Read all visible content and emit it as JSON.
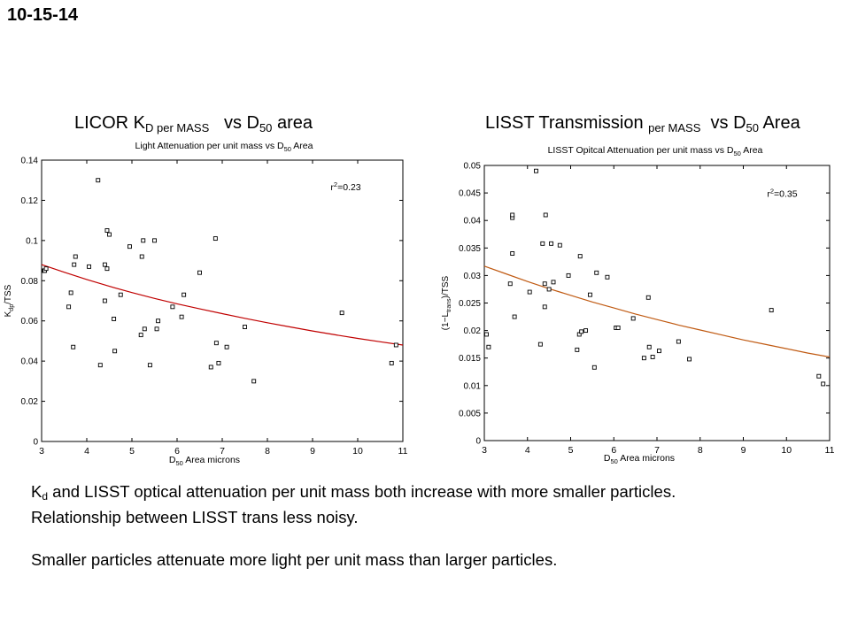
{
  "slide": {
    "date": "10-15-14",
    "left_header": {
      "main": "LICOR K",
      "sub": "D per MASS",
      "mid": "vs D",
      "sub2": "50",
      "end": " area"
    },
    "right_header": {
      "main": "LISST Transmission",
      "sub": "per MASS",
      "mid": "vs D",
      "sub2": "50",
      "end": " Area"
    },
    "notes": {
      "line1_k": "K",
      "line1_sub": "d",
      "line1_rest": " and LISST optical attenuation per unit mass both increase with more smaller particles.",
      "line2": "Relationship between LISST trans less noisy.",
      "line3": "Smaller particles attenuate more light per unit mass than larger particles."
    }
  },
  "chart_data": [
    {
      "type": "scatter",
      "title": "Light Attenuation per unit mass vs D50 Area",
      "title_parts": {
        "a": "Light Attenuation per unit mass vs D",
        "sub": "50",
        "b": " Area"
      },
      "xlabel": "D50 Area microns",
      "xlabel_parts": {
        "a": "D",
        "sub": "50",
        "b": " Area microns"
      },
      "ylabel": "Kdp/TSS",
      "ylabel_parts": {
        "a": "K",
        "sub": "dp",
        "b": "/TSS"
      },
      "annotation": {
        "text": "r2=0.23",
        "a": "r",
        "sup": "2",
        "b": "=0.23",
        "x": 9.4,
        "y": 0.125
      },
      "xlim": [
        3,
        11
      ],
      "ylim": [
        0,
        0.14
      ],
      "xticks": [
        3,
        4,
        5,
        6,
        7,
        8,
        9,
        10,
        11
      ],
      "xtick_labels": [
        "3",
        "4",
        "5",
        "6",
        "7",
        "8",
        "9",
        "10",
        "11"
      ],
      "yticks": [
        0,
        0.02,
        0.04,
        0.06,
        0.08,
        0.1,
        0.12,
        0.14
      ],
      "ytick_labels": [
        "0",
        "0.02",
        "0.04",
        "0.06",
        "0.08",
        "0.1",
        "0.12",
        "0.14"
      ],
      "grid": false,
      "point_color": "#000000",
      "fit_color": "#c00000",
      "fit": {
        "x": [
          3,
          3.5,
          4,
          4.5,
          5,
          5.5,
          6,
          6.5,
          7,
          7.5,
          8,
          8.5,
          9,
          9.5,
          10,
          10.5,
          11
        ],
        "y": [
          0.088,
          0.0842,
          0.0806,
          0.0772,
          0.0741,
          0.0712,
          0.0685,
          0.066,
          0.0636,
          0.0613,
          0.0591,
          0.057,
          0.055,
          0.0531,
          0.0513,
          0.0496,
          0.048
        ]
      },
      "points": {
        "x": [
          3.05,
          3.07,
          3.1,
          3.6,
          3.65,
          3.7,
          3.72,
          3.75,
          4.05,
          4.25,
          4.3,
          4.4,
          4.4,
          4.45,
          4.45,
          4.5,
          4.6,
          4.62,
          4.75,
          4.95,
          5.2,
          5.22,
          5.25,
          5.28,
          5.4,
          5.5,
          5.55,
          5.58,
          5.9,
          6.1,
          6.15,
          6.5,
          6.75,
          6.85,
          6.87,
          6.92,
          7.1,
          7.5,
          7.7,
          9.65,
          10.75,
          10.85
        ],
        "y": [
          0.085,
          0.085,
          0.086,
          0.067,
          0.074,
          0.047,
          0.088,
          0.092,
          0.087,
          0.13,
          0.038,
          0.088,
          0.07,
          0.105,
          0.086,
          0.103,
          0.061,
          0.045,
          0.073,
          0.097,
          0.053,
          0.092,
          0.1,
          0.056,
          0.038,
          0.1,
          0.056,
          0.06,
          0.067,
          0.062,
          0.073,
          0.084,
          0.037,
          0.101,
          0.049,
          0.039,
          0.047,
          0.057,
          0.03,
          0.064,
          0.039,
          0.048
        ]
      }
    },
    {
      "type": "scatter",
      "title": "LISST Opitcal Attenuation per unit mass vs D50 Area",
      "title_parts": {
        "a": "LISST Opitcal Attenuation per unit mass vs D",
        "sub": "50",
        "b": " Area"
      },
      "xlabel": "D50 Area microns",
      "xlabel_parts": {
        "a": "D",
        "sub": "50",
        "b": " Area microns"
      },
      "ylabel": "(1-Ltrans)/TSS",
      "ylabel_parts": {
        "a": "(1−L",
        "sub": "trans",
        "b": ")/TSS"
      },
      "annotation": {
        "text": "r2=0.35",
        "a": "r",
        "sup": "2",
        "b": "=0.35",
        "x": 9.55,
        "y": 0.0443
      },
      "xlim": [
        3,
        11
      ],
      "ylim": [
        0,
        0.05
      ],
      "xticks": [
        3,
        4,
        5,
        6,
        7,
        8,
        9,
        10,
        11
      ],
      "xtick_labels": [
        "3",
        "4",
        "5",
        "6",
        "7",
        "8",
        "9",
        "10",
        "11"
      ],
      "yticks": [
        0,
        0.005,
        0.01,
        0.015,
        0.02,
        0.025,
        0.03,
        0.035,
        0.04,
        0.045,
        0.05
      ],
      "ytick_labels": [
        "0",
        "0.005",
        "0.01",
        "0.015",
        "0.02",
        "0.025",
        "0.03",
        "0.035",
        "0.04",
        "0.045",
        "0.05"
      ],
      "grid": false,
      "point_color": "#000000",
      "fit_color": "#c05a12",
      "fit": {
        "x": [
          3,
          3.5,
          4,
          4.5,
          5,
          5.5,
          6,
          6.5,
          7,
          7.5,
          8,
          8.5,
          9,
          9.5,
          10,
          10.5,
          11
        ],
        "y": [
          0.0317,
          0.0303,
          0.0289,
          0.0276,
          0.0264,
          0.0252,
          0.0241,
          0.023,
          0.022,
          0.021,
          0.0201,
          0.0192,
          0.0183,
          0.0175,
          0.0167,
          0.0159,
          0.0152
        ]
      },
      "points": {
        "x": [
          3.05,
          3.1,
          3.6,
          3.65,
          3.65,
          3.65,
          3.7,
          4.05,
          4.2,
          4.3,
          4.35,
          4.4,
          4.4,
          4.42,
          4.5,
          4.55,
          4.6,
          4.75,
          4.95,
          5.15,
          5.2,
          5.22,
          5.25,
          5.35,
          5.45,
          5.55,
          5.6,
          5.85,
          6.05,
          6.1,
          6.45,
          6.7,
          6.8,
          6.82,
          6.9,
          7.05,
          7.5,
          7.75,
          9.65,
          10.75,
          10.85
        ],
        "y": [
          0.0193,
          0.017,
          0.0285,
          0.0405,
          0.041,
          0.034,
          0.0225,
          0.027,
          0.049,
          0.0175,
          0.0358,
          0.0285,
          0.0243,
          0.041,
          0.0275,
          0.0358,
          0.0288,
          0.0355,
          0.03,
          0.0165,
          0.0193,
          0.0335,
          0.0198,
          0.02,
          0.0265,
          0.0133,
          0.0305,
          0.0297,
          0.0205,
          0.0205,
          0.0222,
          0.015,
          0.026,
          0.017,
          0.0152,
          0.0163,
          0.018,
          0.0148,
          0.0237,
          0.0117,
          0.0103
        ]
      }
    }
  ]
}
